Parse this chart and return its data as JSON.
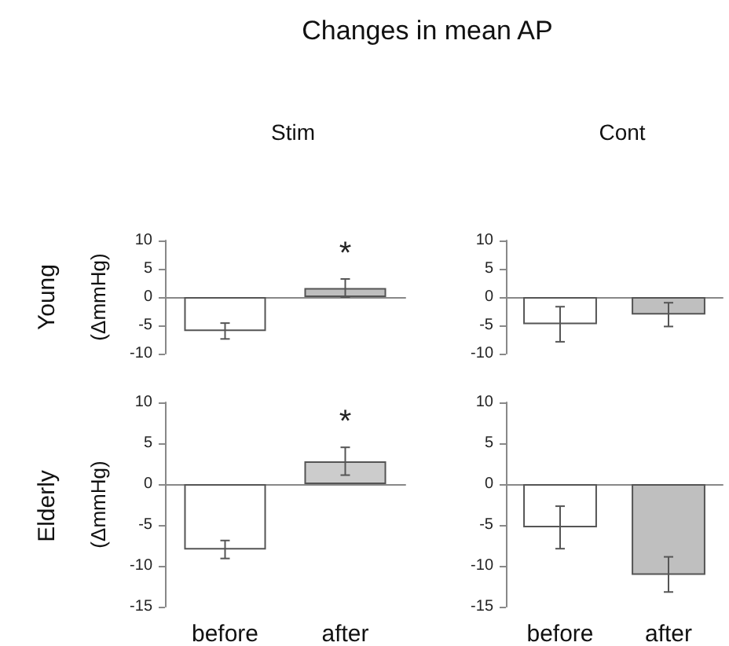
{
  "chart_data": [
    {
      "type": "bar",
      "title": "Stim",
      "ylabel": "(ΔmmHg)",
      "categories": [
        null,
        null
      ],
      "values": [
        -6.0,
        1.6
      ],
      "errors": [
        [
          -7.4,
          -4.6
        ],
        [
          0.0,
          3.2
        ]
      ],
      "colors": [
        "#ffffff",
        "#bfbfbf"
      ],
      "ylim": [
        -10,
        10
      ],
      "yticks": [
        -10,
        -5,
        0,
        5,
        10
      ],
      "tick_labels": "y",
      "annotations": [
        "Changes in mean AP",
        "Young",
        "*"
      ]
    },
    {
      "type": "bar",
      "title": "Cont",
      "categories": [
        null,
        null
      ],
      "values": [
        -4.8,
        -3.1
      ],
      "errors": [
        [
          -7.9,
          -1.7
        ],
        [
          -5.2,
          -1.0
        ]
      ],
      "colors": [
        "#ffffff",
        "#bfbfbf"
      ],
      "ylim": [
        -10,
        10
      ],
      "yticks": [
        -10,
        -5,
        0,
        5,
        10
      ],
      "tick_labels": "y"
    },
    {
      "type": "bar",
      "ylabel": "(ΔmmHg)",
      "categories": [
        "before",
        "after"
      ],
      "values": [
        -8.0,
        2.8
      ],
      "errors": [
        [
          -9.1,
          -6.9
        ],
        [
          1.1,
          4.5
        ]
      ],
      "colors": [
        "#ffffff",
        "#cccccc"
      ],
      "ylim": [
        -15,
        10
      ],
      "yticks": [
        -15,
        -10,
        -5,
        0,
        5,
        10
      ],
      "annotations": [
        "Elderly",
        "*"
      ]
    },
    {
      "type": "bar",
      "categories": [
        "before",
        "after"
      ],
      "values": [
        -5.3,
        -11.1
      ],
      "errors": [
        [
          -7.9,
          -2.7
        ],
        [
          -13.2,
          -8.9
        ]
      ],
      "colors": [
        "#ffffff",
        "#bfbfbf"
      ],
      "ylim": [
        -15,
        10
      ],
      "yticks": [
        -15,
        -10,
        -5,
        0,
        5,
        10
      ]
    }
  ]
}
